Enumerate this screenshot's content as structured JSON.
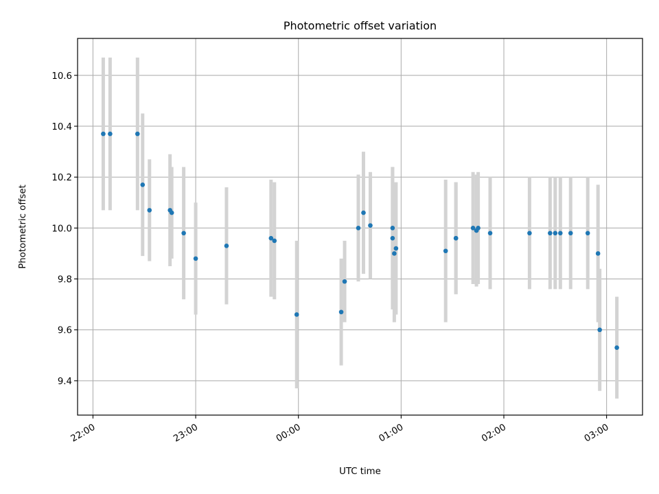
{
  "chart_data": {
    "type": "scatter",
    "title": "Photometric offset variation",
    "xlabel": "UTC time",
    "ylabel": "Photometric offset",
    "xlim": [
      "21:51",
      "03:21"
    ],
    "ylim": [
      9.265,
      10.745
    ],
    "x_ticks": [
      "22:00",
      "23:00",
      "00:00",
      "01:00",
      "02:00",
      "03:00"
    ],
    "y_ticks": [
      9.4,
      9.6,
      9.8,
      10.0,
      10.2,
      10.4,
      10.6
    ],
    "y_tick_labels": [
      "9.4",
      "9.6",
      "9.8",
      "10.0",
      "10.2",
      "10.4",
      "10.6"
    ],
    "grid": true,
    "marker_color": "#1f77b4",
    "errorbar_color": "#d3d3d3",
    "points": [
      {
        "time": "22:06",
        "y": 10.37,
        "err": 0.3
      },
      {
        "time": "22:10",
        "y": 10.37,
        "err": 0.3
      },
      {
        "time": "22:26",
        "y": 10.37,
        "err": 0.3
      },
      {
        "time": "22:29",
        "y": 10.17,
        "err": 0.28
      },
      {
        "time": "22:33",
        "y": 10.07,
        "err": 0.2
      },
      {
        "time": "22:45",
        "y": 10.07,
        "err": 0.22
      },
      {
        "time": "22:46",
        "y": 10.06,
        "err": 0.18
      },
      {
        "time": "22:53",
        "y": 9.98,
        "err": 0.26
      },
      {
        "time": "23:00",
        "y": 9.88,
        "err": 0.22
      },
      {
        "time": "23:18",
        "y": 9.93,
        "err": 0.23
      },
      {
        "time": "23:44",
        "y": 9.96,
        "err": 0.23
      },
      {
        "time": "23:46",
        "y": 9.95,
        "err": 0.23
      },
      {
        "time": "23:59",
        "y": 9.66,
        "err": 0.29
      },
      {
        "time": "00:25",
        "y": 9.67,
        "err": 0.21
      },
      {
        "time": "00:27",
        "y": 9.79,
        "err": 0.16
      },
      {
        "time": "00:35",
        "y": 10.0,
        "err": 0.21
      },
      {
        "time": "00:38",
        "y": 10.06,
        "err": 0.24
      },
      {
        "time": "00:42",
        "y": 10.01,
        "err": 0.21
      },
      {
        "time": "00:55",
        "y": 10.0,
        "err": 0.24
      },
      {
        "time": "00:55",
        "y": 9.96,
        "err": 0.28
      },
      {
        "time": "00:56",
        "y": 9.9,
        "err": 0.27
      },
      {
        "time": "00:57",
        "y": 9.92,
        "err": 0.26
      },
      {
        "time": "01:26",
        "y": 9.91,
        "err": 0.28
      },
      {
        "time": "01:32",
        "y": 9.96,
        "err": 0.22
      },
      {
        "time": "01:32",
        "y": 9.96,
        "err": 0.22
      },
      {
        "time": "01:42",
        "y": 10.0,
        "err": 0.22
      },
      {
        "time": "01:44",
        "y": 9.99,
        "err": 0.22
      },
      {
        "time": "01:45",
        "y": 10.0,
        "err": 0.22
      },
      {
        "time": "01:52",
        "y": 9.98,
        "err": 0.22
      },
      {
        "time": "02:15",
        "y": 9.98,
        "err": 0.22
      },
      {
        "time": "02:27",
        "y": 9.98,
        "err": 0.22
      },
      {
        "time": "02:30",
        "y": 9.98,
        "err": 0.22
      },
      {
        "time": "02:33",
        "y": 9.98,
        "err": 0.22
      },
      {
        "time": "02:39",
        "y": 9.98,
        "err": 0.22
      },
      {
        "time": "02:49",
        "y": 9.98,
        "err": 0.22
      },
      {
        "time": "02:55",
        "y": 9.9,
        "err": 0.27
      },
      {
        "time": "02:56",
        "y": 9.6,
        "err": 0.24
      },
      {
        "time": "03:06",
        "y": 9.53,
        "err": 0.2
      }
    ]
  }
}
